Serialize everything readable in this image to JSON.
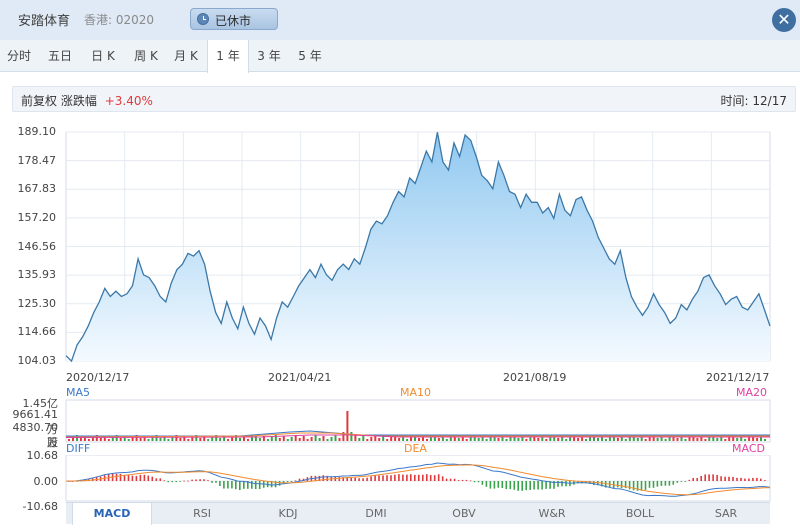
{
  "header": {
    "stock_name": "安踏体育",
    "stock_code": "香港: 02020",
    "status": "已休市",
    "close_label": "✕"
  },
  "tabs": [
    {
      "label": "分时"
    },
    {
      "label": "五日"
    },
    {
      "label": "日 K"
    },
    {
      "label": "周 K"
    },
    {
      "label": "月 K"
    },
    {
      "label": "1 年",
      "active": true
    },
    {
      "label": "3 年"
    },
    {
      "label": "5 年"
    }
  ],
  "infobar": {
    "adjust": "前复权",
    "change_label": "涨跌幅",
    "change_value": "+3.40%",
    "time_label": "时间: 12/17"
  },
  "colors": {
    "line": "#3b78a8",
    "fill_top": "#90c8f0",
    "fill_bottom": "#f4faff",
    "up": "#e0393c",
    "down": "#3aa24a",
    "ma5": "#3b78c8",
    "ma10": "#f08c30",
    "ma20": "#e040a0"
  },
  "chart_data": {
    "type": "area",
    "y_ticks": [
      "189.10",
      "178.47",
      "167.83",
      "157.20",
      "146.56",
      "135.93",
      "125.30",
      "114.66",
      "104.03"
    ],
    "ylim": [
      104.03,
      189.1
    ],
    "x_ticks": [
      "2020/12/17",
      "2021/04/21",
      "2021/08/19",
      "2021/12/17"
    ],
    "grid": true,
    "series": [
      {
        "values": [
          106,
          104,
          110,
          113,
          117,
          122,
          126,
          131,
          128,
          130,
          128,
          129,
          132,
          142,
          136,
          135,
          132,
          128,
          126,
          133,
          138,
          140,
          144,
          143,
          145,
          140,
          130,
          122,
          118,
          126,
          120,
          116,
          124,
          118,
          114,
          120,
          117,
          112,
          120,
          126,
          124,
          128,
          132,
          135,
          138,
          135,
          140,
          136,
          134,
          138,
          140,
          138,
          142,
          140,
          146,
          153,
          156,
          155,
          158,
          163,
          167,
          165,
          172,
          170,
          176,
          182,
          178,
          189,
          178,
          175,
          185,
          180,
          188,
          186,
          180,
          173,
          171,
          168,
          178,
          173,
          167,
          166,
          161,
          166,
          163,
          163,
          159,
          161,
          157,
          166,
          160,
          158,
          164,
          165,
          160,
          156,
          150,
          146,
          142,
          140,
          145,
          135,
          128,
          124,
          121,
          124,
          129,
          125,
          122,
          118,
          120,
          125,
          123,
          127,
          130,
          135,
          136,
          132,
          129,
          125,
          127,
          128,
          124,
          123,
          126,
          129,
          123,
          117
        ]
      }
    ]
  },
  "volume": {
    "labels": [
      "MA5",
      "MA10",
      "MA20"
    ],
    "ticks": [
      "1.45亿",
      "9661.41万",
      "4830.70万",
      "股"
    ]
  },
  "macd": {
    "labels": [
      "DIFF",
      "DEA",
      "MACD"
    ],
    "ticks": [
      "10.68",
      "0.00",
      "-10.68"
    ],
    "tabs": [
      "MACD",
      "RSI",
      "KDJ",
      "DMI",
      "OBV",
      "W&R",
      "BOLL",
      "SAR"
    ]
  }
}
